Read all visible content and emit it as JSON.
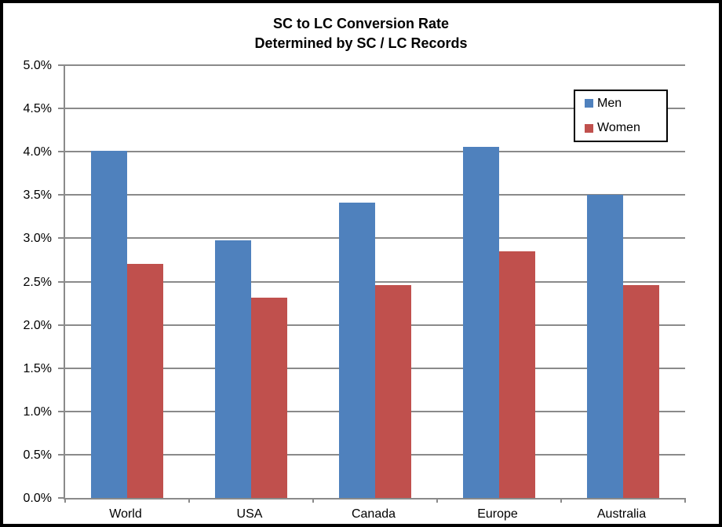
{
  "chart_data": {
    "type": "bar",
    "title": "SC to LC Conversion Rate",
    "subtitle": "Determined by SC / LC Records",
    "categories": [
      "World",
      "USA",
      "Canada",
      "Europe",
      "Australia"
    ],
    "series": [
      {
        "name": "Men",
        "color": "#4F81BD",
        "values": [
          4.01,
          2.98,
          3.41,
          4.06,
          3.5
        ]
      },
      {
        "name": "Women",
        "color": "#C0504D",
        "values": [
          2.7,
          2.31,
          2.46,
          2.85,
          2.46
        ]
      }
    ],
    "value_unit": "%",
    "ylim": [
      0,
      5
    ],
    "ytick_step": 0.5,
    "ytick_labels": [
      "0.0%",
      "0.5%",
      "1.0%",
      "1.5%",
      "2.0%",
      "2.5%",
      "3.0%",
      "3.5%",
      "4.0%",
      "4.5%",
      "5.0%"
    ],
    "xlabel": "",
    "ylabel": "",
    "grid": true,
    "legend_position": "top-right",
    "colors": {
      "gridline": "#8a8a8a",
      "axis": "#8a8a8a",
      "text": "#000000",
      "frame_border": "#000000",
      "background": "#ffffff"
    }
  }
}
